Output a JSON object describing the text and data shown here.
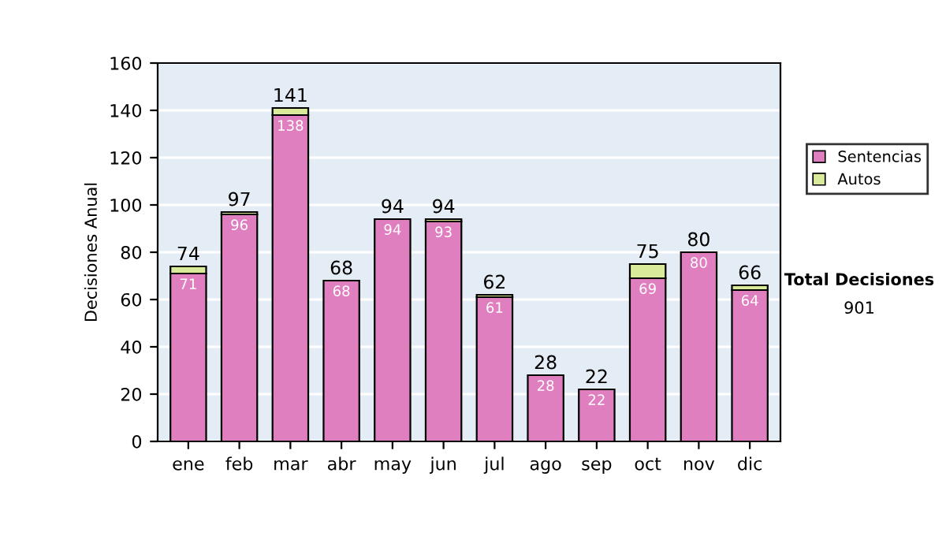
{
  "chart_data": {
    "type": "bar",
    "stacked": true,
    "ylabel": "Decisiones Anual",
    "categories": [
      "ene",
      "feb",
      "mar",
      "abr",
      "may",
      "jun",
      "jul",
      "ago",
      "sep",
      "oct",
      "nov",
      "dic"
    ],
    "series": [
      {
        "name": "Sentencias",
        "color": "#e07fc0",
        "values": [
          71,
          96,
          138,
          68,
          94,
          93,
          61,
          28,
          22,
          69,
          80,
          64
        ],
        "value_labels": [
          "71",
          "96",
          "138",
          "68",
          "94",
          "93",
          "61",
          "28",
          "22",
          "69",
          "80",
          "64"
        ]
      },
      {
        "name": "Autos",
        "color": "#d9eb9b",
        "values": [
          3,
          1,
          3,
          0,
          0,
          1,
          1,
          0,
          0,
          6,
          0,
          2
        ]
      }
    ],
    "totals": [
      "74",
      "97",
      "141",
      "68",
      "94",
      "94",
      "62",
      "28",
      "22",
      "75",
      "80",
      "66"
    ],
    "ylim": [
      0,
      160
    ],
    "yticks": [
      0,
      20,
      40,
      60,
      80,
      100,
      120,
      140,
      160
    ],
    "grid": "y",
    "legend": "right",
    "annotations": [
      "Total Decisiones",
      "901"
    ]
  }
}
